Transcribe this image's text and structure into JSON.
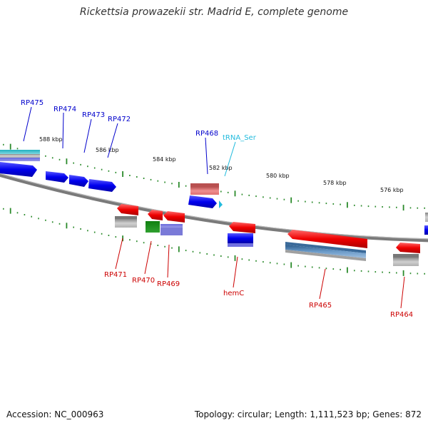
{
  "title": "Rickettsia prowazekii str. Madrid E, complete genome",
  "footer": {
    "accession": "Accession: NC_000963",
    "summary": "Topology: circular; Length: 1,111,523 bp; Genes: 872"
  },
  "colors": {
    "backbone": "#7a7a7a",
    "tick": "#2a8a2a",
    "forward_gene": "#0000ee",
    "reverse_gene": "#ee0000",
    "trna": "#22bbdd",
    "forward_label": "#0000cc",
    "reverse_label": "#cc0000",
    "trna_label": "#22bbdd"
  },
  "scale_labels": [
    "588 kbp",
    "586 kbp",
    "584 kbp",
    "582 kbp",
    "580 kbp",
    "578 kbp",
    "576 kbp"
  ],
  "gene_labels": {
    "forward": [
      "RP475",
      "RP474",
      "RP473",
      "RP472",
      "RP468"
    ],
    "trna": [
      "tRNA_Ser"
    ],
    "reverse": [
      "RP471",
      "RP470",
      "RP469",
      "hemC",
      "RP465",
      "RP464"
    ]
  }
}
